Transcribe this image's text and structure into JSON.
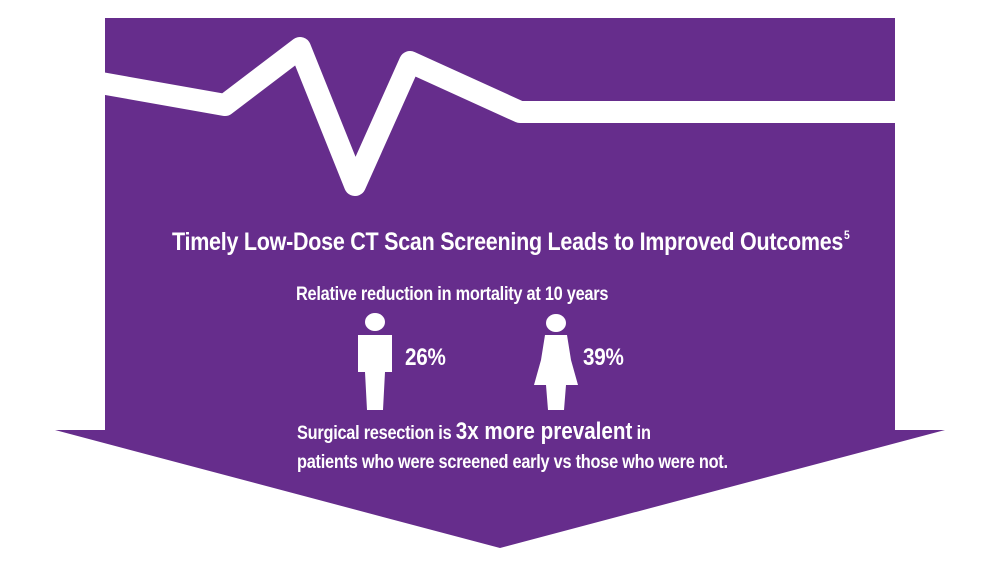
{
  "title": "Timely Low-Dose CT Scan Screening Leads to Improved Outcomes",
  "title_superscript": "5",
  "subtitle": "Relative reduction in mortality at 10 years",
  "stats": {
    "male_value": "26%",
    "female_value": "39%"
  },
  "footer": {
    "line1_prefix": "Surgical resection is ",
    "line1_emphasis": "3x more prevalent",
    "line1_suffix": " in",
    "line2": "patients who were screened early vs those who were not."
  },
  "icons": {
    "male": "male-figure-icon",
    "female": "female-figure-icon",
    "pulse": "heartbeat-line-icon"
  },
  "colors": {
    "arrow_fill": "#662d8c",
    "text": "#ffffff",
    "background": "#ffffff"
  }
}
